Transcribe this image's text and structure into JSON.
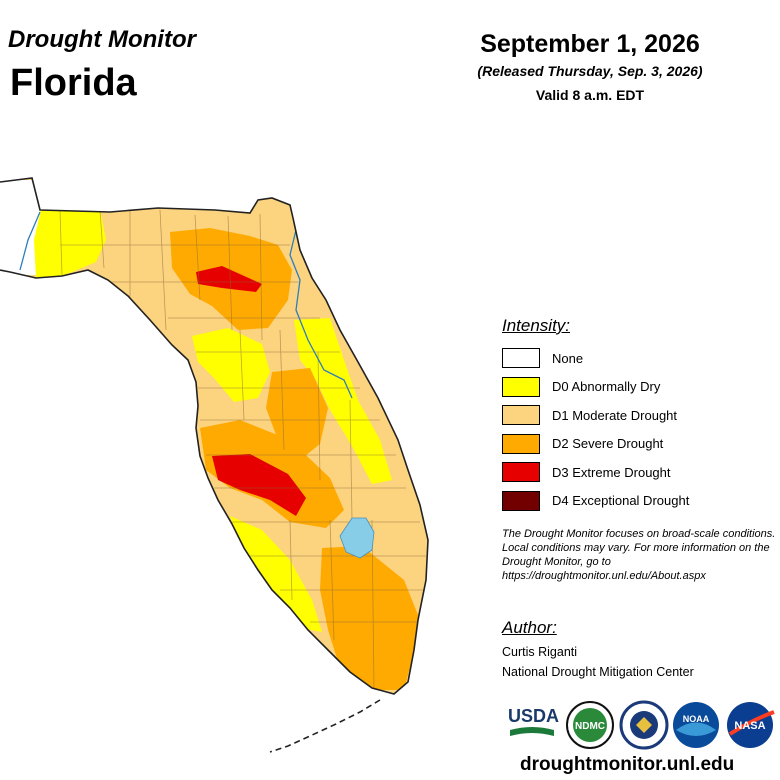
{
  "header": {
    "subtitle": "Drought Monitor",
    "state": "Florida",
    "date": "September 1, 2026",
    "released": "(Released Thursday, Sep. 3, 2026)",
    "valid": "Valid 8 a.m. EDT"
  },
  "legend": {
    "title": "Intensity:",
    "items": [
      {
        "label": "None",
        "color": "#ffffff"
      },
      {
        "label": "D0 Abnormally Dry",
        "color": "#ffff00"
      },
      {
        "label": "D1 Moderate Drought",
        "color": "#fcd37f"
      },
      {
        "label": "D2 Severe Drought",
        "color": "#ffaa00"
      },
      {
        "label": "D3 Extreme Drought",
        "color": "#e60000"
      },
      {
        "label": "D4 Exceptional Drought",
        "color": "#730000"
      }
    ]
  },
  "note": "The Drought Monitor focuses on broad-scale conditions. Local conditions may vary. For more information on the Drought Monitor, go to https://droughtmonitor.unl.edu/About.aspx",
  "author": {
    "title": "Author:",
    "name": "Curtis Riganti",
    "org": "National Drought Mitigation Center"
  },
  "logos": [
    {
      "name": "usda-logo",
      "text": "USDA"
    },
    {
      "name": "ndmc-logo",
      "text": "NDMC"
    },
    {
      "name": "doc-logo",
      "text": ""
    },
    {
      "name": "noaa-logo",
      "text": "NOAA"
    },
    {
      "name": "nasa-logo",
      "text": "NASA"
    }
  ],
  "url": "droughtmonitor.unl.edu",
  "colors": {
    "water": "#87cde8",
    "county_lines": "#8a6a3a"
  }
}
